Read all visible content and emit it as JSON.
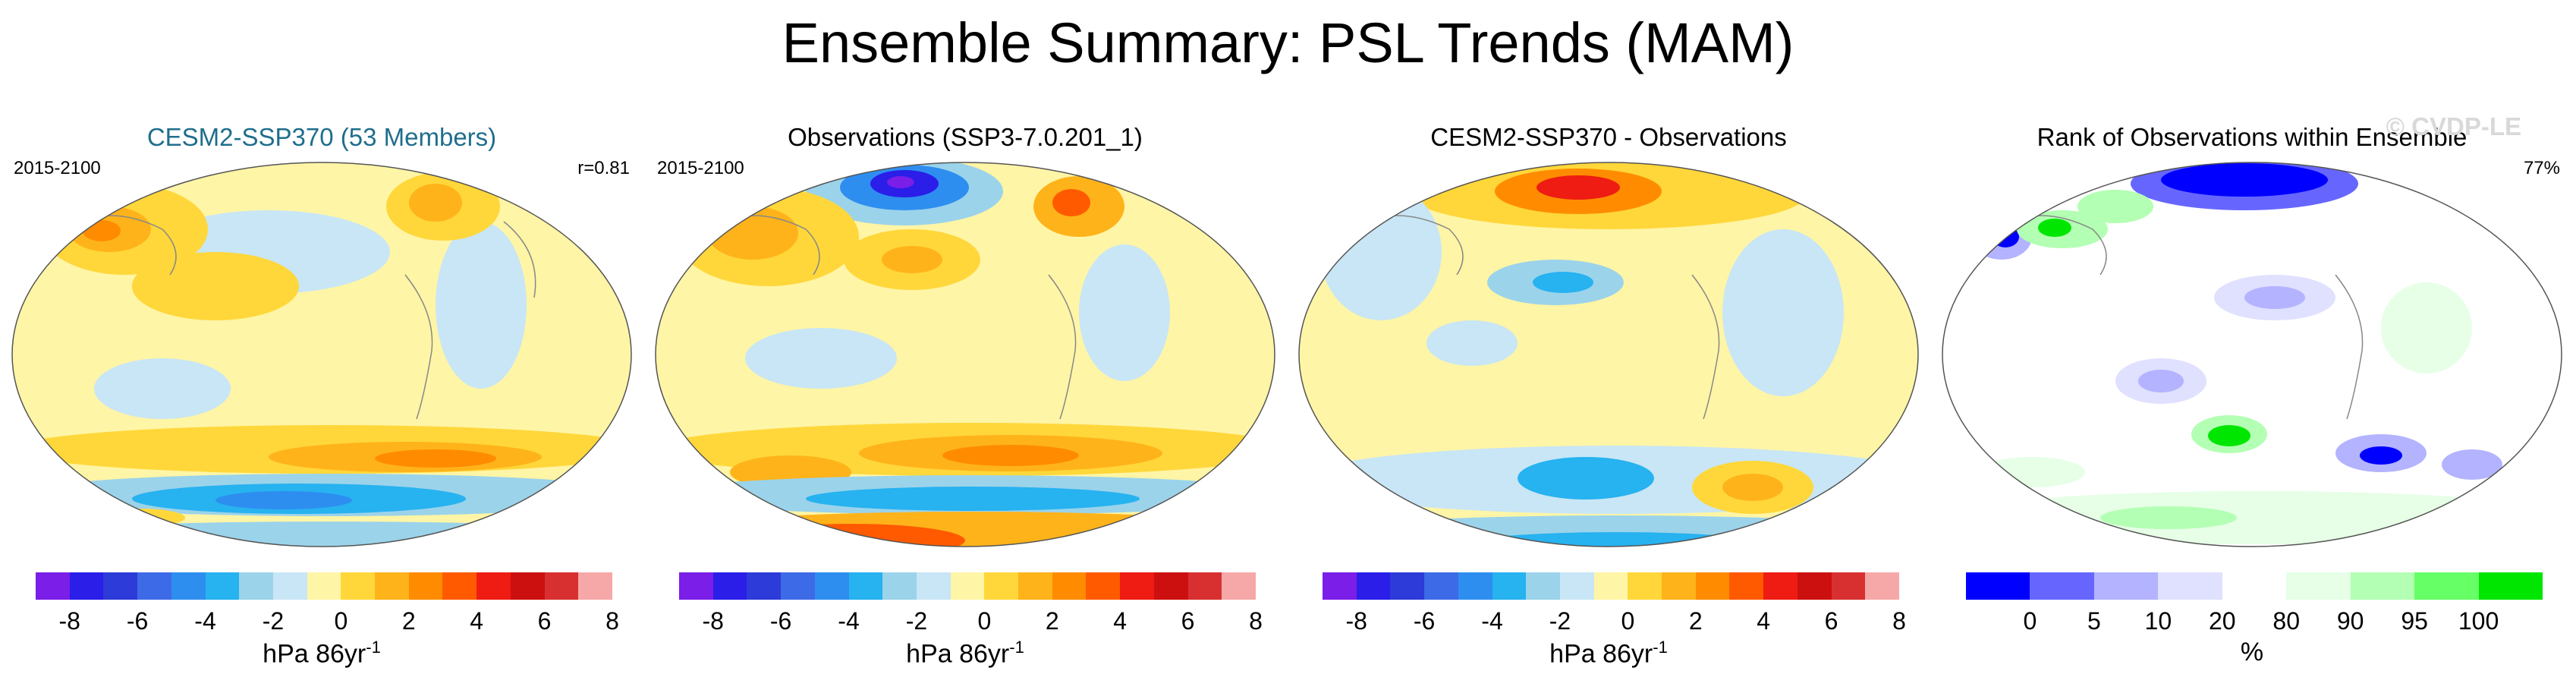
{
  "title": "Ensemble Summary: PSL Trends (MAM)",
  "watermark": "© CVDP-LE",
  "panels": [
    {
      "title": "CESM2-SSP370 (53 Members)",
      "left_label": "2015-2100",
      "right_label": "r=0.81",
      "unit": "hPa 86yr",
      "unit_sup": "-1"
    },
    {
      "title": "Observations (SSP3-7.0.201_1)",
      "left_label": "2015-2100",
      "right_label": "",
      "unit": "hPa 86yr",
      "unit_sup": "-1"
    },
    {
      "title": "CESM2-SSP370 - Observations",
      "left_label": "",
      "right_label": "",
      "unit": "hPa 86yr",
      "unit_sup": "-1"
    },
    {
      "title": "Rank of Observations within Ensemble",
      "left_label": "",
      "right_label": "77%",
      "unit": "%",
      "unit_sup": ""
    }
  ],
  "trend_colorbar": {
    "colors": [
      "#7a1ee8",
      "#2a1ee8",
      "#2d3bd8",
      "#3d6ae6",
      "#2e8ef0",
      "#27b2f0",
      "#9bd3ea",
      "#c8e6f5",
      "#fff5a6",
      "#ffd73a",
      "#ffb31a",
      "#ff8c00",
      "#ff5a00",
      "#ee1c12",
      "#cc1010",
      "#d83030",
      "#f6a8a8"
    ],
    "tick_labels": [
      "-8",
      "-6",
      "-4",
      "-2",
      "0",
      "2",
      "4",
      "6",
      "8"
    ]
  },
  "rank_colorbar": {
    "colors": [
      "#0000ff",
      "#6666ff",
      "#b3b3ff",
      "#e0e0ff",
      "#ffffff",
      "#e6ffe6",
      "#b3ffb3",
      "#66ff66",
      "#00e600"
    ],
    "tick_labels": [
      "0",
      "5",
      "10",
      "20",
      "80",
      "90",
      "95",
      "100"
    ]
  }
}
